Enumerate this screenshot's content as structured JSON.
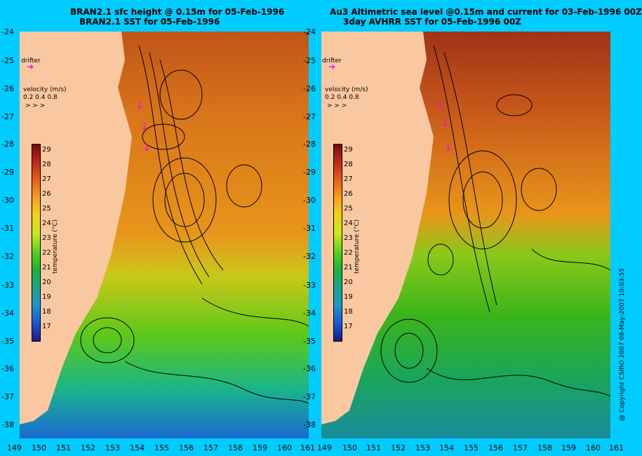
{
  "left_title_line1": "BRAN2.1 sfc height @ 0.15m for 05-Feb-1996",
  "left_title_line2": "BRAN2.1 SST for 05-Feb-1996",
  "right_title_line1": "Au3 Altimetric sea level  @0.15m and current for 03-Feb-1996 00Z",
  "right_title_line2": "3day AVHRR SST for 05-Feb-1996 00Z",
  "drifter_label": "drifter",
  "velocity_label": "velocity (m/s)",
  "velocity_scale": "0.2 0.4 0.8",
  "colorbar_title": "temperature (°C)",
  "colorbar_ticks": [
    "29",
    "28",
    "27",
    "26",
    "25",
    "24",
    "23",
    "22",
    "21",
    "20",
    "19",
    "18",
    "17"
  ],
  "y_ticks": [
    "-24",
    "-25",
    "-26",
    "-27",
    "-28",
    "-29",
    "-30",
    "-31",
    "-32",
    "-33",
    "-34",
    "-35",
    "-36",
    "-37",
    "-38"
  ],
  "x_ticks": [
    "149",
    "150",
    "151",
    "152",
    "153",
    "154",
    "155",
    "156",
    "157",
    "158",
    "159",
    "160",
    "161"
  ],
  "copyright": "@ Copyright CSIRO 2007  08-May-2007 10:03:55",
  "colors": {
    "background": "#00ccff",
    "land": "#fac8a0",
    "drifter": "#ff00ff"
  }
}
